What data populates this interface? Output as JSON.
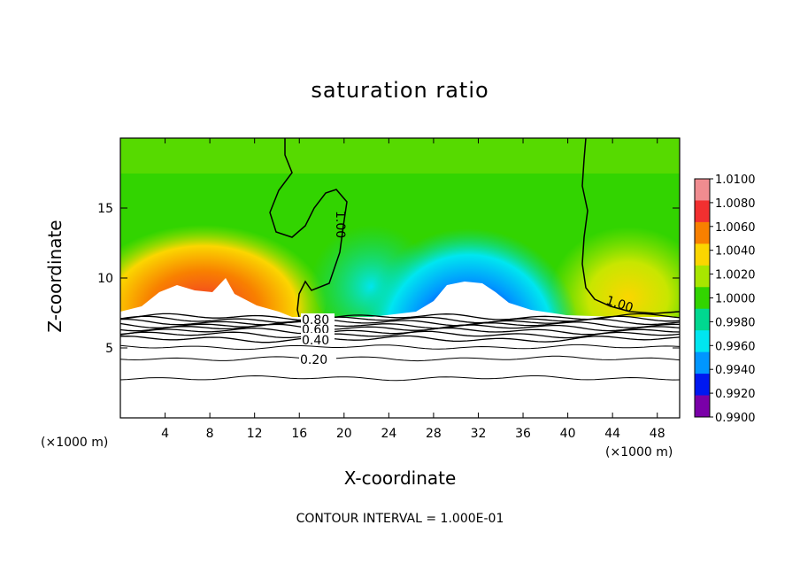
{
  "chart_data": {
    "type": "heatmap",
    "title": "saturation ratio",
    "xlabel": "X-coordinate",
    "ylabel": "Z-coordinate",
    "x_unit": "(×1000 m)",
    "x_ticks": [
      4,
      8,
      12,
      16,
      20,
      24,
      28,
      32,
      36,
      40,
      44,
      48
    ],
    "y_ticks": [
      5,
      10,
      15
    ],
    "xlim": [
      0,
      50
    ],
    "ylim": [
      0,
      20
    ],
    "colorbar": {
      "labels": [
        "1.0100",
        "1.0080",
        "1.0060",
        "1.0040",
        "1.0020",
        "1.0000",
        "0.9980",
        "0.9960",
        "0.9940",
        "0.9920",
        "0.9900"
      ],
      "colors": [
        "#f08c90",
        "#f23030",
        "#f88000",
        "#fbd600",
        "#a8e600",
        "#32d400",
        "#00d890",
        "#00e6f0",
        "#0096ff",
        "#0018f0",
        "#7a00a8"
      ]
    },
    "contour_labels": [
      "0.80",
      "0.60",
      "0.40",
      "0.20",
      "1.00",
      "1.00"
    ],
    "footer": "CONTOUR INTERVAL = 1.000E-01"
  }
}
